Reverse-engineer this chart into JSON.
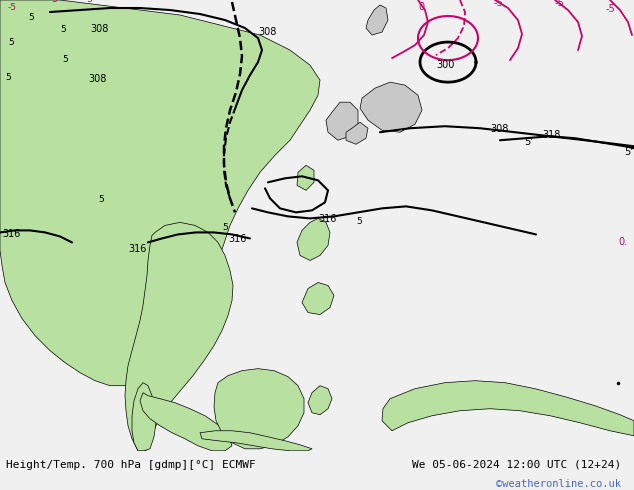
{
  "title_left": "Height/Temp. 700 hPa [gdmp][°C] ECMWF",
  "title_right": "We 05-06-2024 12:00 UTC (12+24)",
  "watermark": "©weatheronline.co.uk",
  "bg_color": "#c8d8e8",
  "land_color_green": "#b8e0a0",
  "land_color_gray": "#c8c8c8",
  "text_color": "#000000",
  "watermark_color": "#4466cc",
  "bottom_bar_color": "#f0f0f0",
  "figwidth": 6.34,
  "figheight": 4.9,
  "dpi": 100
}
